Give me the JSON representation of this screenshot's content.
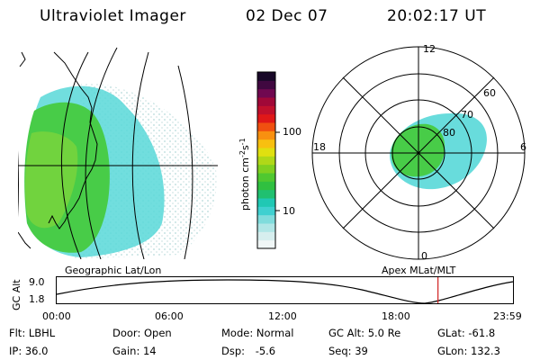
{
  "header": {
    "title": "Ultraviolet Imager",
    "date": "02 Dec 07",
    "time": "20:02:17 UT"
  },
  "geo_panel": {
    "label": "Geographic Lat/Lon"
  },
  "polar_panel": {
    "label": "Apex  MLat/MLT",
    "mlt_labels": [
      "12",
      "18",
      "6",
      "0"
    ],
    "mlat_labels": [
      "60",
      "70",
      "80"
    ]
  },
  "colorbar": {
    "unit_label": "photon cm",
    "unit_sup1": "-2",
    "unit_mid": "s",
    "unit_sup2": "-1",
    "tick_labels": [
      "100",
      "10"
    ],
    "colors": [
      "#f0f6f6",
      "#d6eeee",
      "#b0e6e6",
      "#80dcdc",
      "#40d0d0",
      "#20c8b4",
      "#20c070",
      "#30c040",
      "#50c830",
      "#80d020",
      "#b0d818",
      "#e0e010",
      "#f8c010",
      "#f89010",
      "#f05010",
      "#e01818",
      "#c0102c",
      "#a00838",
      "#700850",
      "#400840",
      "#180828"
    ]
  },
  "orbit": {
    "ylabel": "GC Alt",
    "yticks": [
      "9.0",
      "1.8"
    ],
    "xticks": [
      "00:00",
      "06:00",
      "12:00",
      "18:00",
      "23:59"
    ],
    "marker_hour": 20.04
  },
  "info": {
    "filter_label": "Flt:",
    "filter_value": "LBHL",
    "door_label": "Door:",
    "door_value": "Open",
    "mode_label": "Mode:",
    "mode_value": "Normal",
    "gcalt_label": "GC Alt:",
    "gcalt_value": "5.0 Re",
    "glat_label": "GLat:",
    "glat_value": "-61.8",
    "ip_label": "IP:",
    "ip_value": "36.0",
    "gain_label": "Gain:",
    "gain_value": "14",
    "dsp_label": "Dsp:",
    "dsp_value": "-5.6",
    "seq_label": "Seq:",
    "seq_value": "39",
    "glon_label": "GLon:",
    "glon_value": "132.3"
  }
}
